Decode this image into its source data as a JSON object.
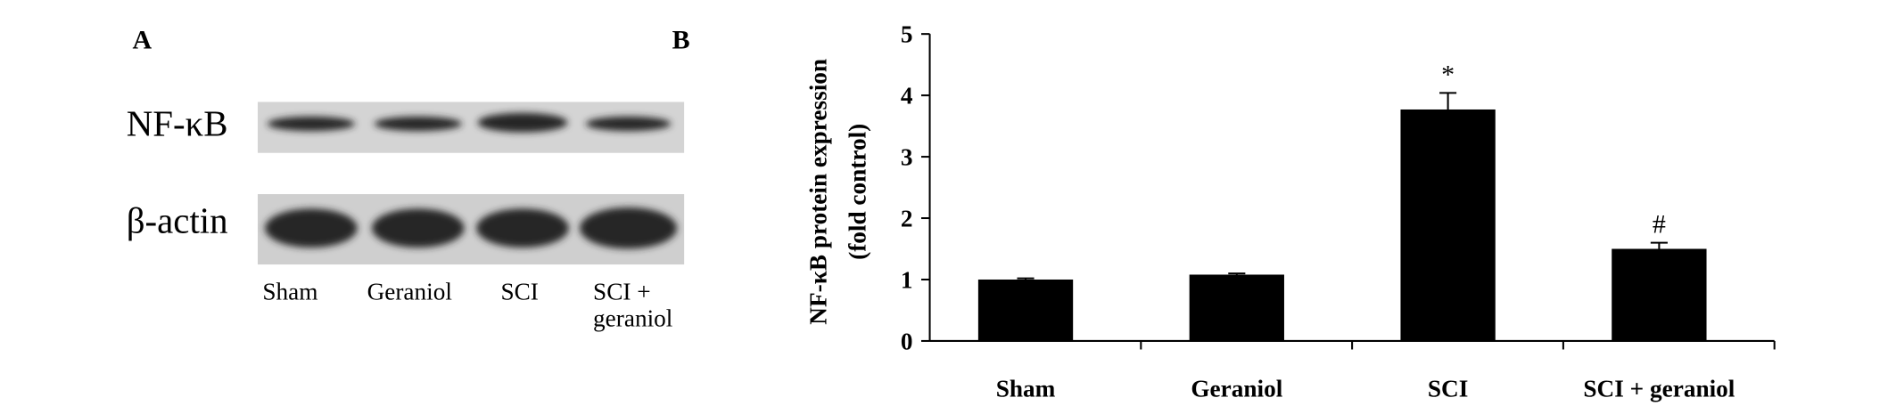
{
  "panel_a": {
    "label": "A",
    "rows": [
      "NF-κB",
      "β-actin"
    ],
    "lanes": [
      "Sham",
      "Geraniol",
      "SCI",
      "SCI + geraniol"
    ]
  },
  "chart_data": {
    "type": "bar",
    "panel_label": "B",
    "y_label": [
      "NF-κB protein expression",
      "(fold control)"
    ],
    "categories": [
      "Sham",
      "Geraniol",
      "SCI",
      "SCI + geraniol"
    ],
    "values": [
      1.0,
      1.08,
      3.77,
      1.5
    ],
    "errors": [
      0.02,
      0.02,
      0.27,
      0.1
    ],
    "markers": [
      null,
      null,
      "*",
      "#"
    ],
    "color": "#000000",
    "ylim": [
      0,
      5
    ],
    "yticks": [
      0,
      1,
      2,
      3,
      4,
      5
    ],
    "grid": false
  }
}
